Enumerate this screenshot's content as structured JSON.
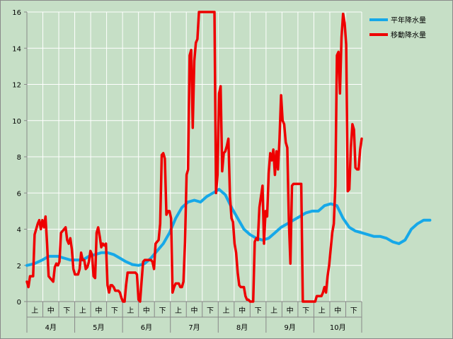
{
  "chart_data": {
    "type": "line",
    "title": "",
    "xlabel": "",
    "ylabel": "",
    "ylim": [
      0,
      16
    ],
    "yticks": [
      "0",
      "2",
      "4",
      "6",
      "8",
      "10",
      "12",
      "14",
      "16"
    ],
    "months": [
      "4月",
      "5月",
      "6月",
      "7月",
      "8月",
      "9月",
      "10月"
    ],
    "periods": [
      "上",
      "中",
      "下"
    ],
    "x_unit": "day index from start of April (0–213)",
    "grid": true,
    "legend_position": "top-right",
    "colors": {
      "background": "#c6dfc6",
      "normal": "#16a8e8",
      "moving": "#ee0000"
    },
    "series": [
      {
        "name": "平年降水量",
        "color": "#16a8e8",
        "points": [
          [
            0,
            2.0
          ],
          [
            5,
            2.1
          ],
          [
            10,
            2.3
          ],
          [
            14,
            2.5
          ],
          [
            20,
            2.5
          ],
          [
            24,
            2.4
          ],
          [
            28,
            2.3
          ],
          [
            32,
            2.3
          ],
          [
            36,
            2.3
          ],
          [
            40,
            2.5
          ],
          [
            44,
            2.6
          ],
          [
            48,
            2.7
          ],
          [
            52,
            2.7
          ],
          [
            56,
            2.6
          ],
          [
            60,
            2.4
          ],
          [
            64,
            2.2
          ],
          [
            68,
            2.05
          ],
          [
            72,
            2.0
          ],
          [
            76,
            2.1
          ],
          [
            80,
            2.4
          ],
          [
            84,
            2.8
          ],
          [
            88,
            3.2
          ],
          [
            92,
            3.8
          ],
          [
            96,
            4.6
          ],
          [
            100,
            5.2
          ],
          [
            104,
            5.5
          ],
          [
            108,
            5.6
          ],
          [
            112,
            5.5
          ],
          [
            116,
            5.8
          ],
          [
            120,
            6.0
          ],
          [
            124,
            6.2
          ],
          [
            128,
            5.9
          ],
          [
            132,
            5.2
          ],
          [
            136,
            4.6
          ],
          [
            140,
            4.0
          ],
          [
            144,
            3.7
          ],
          [
            148,
            3.5
          ],
          [
            152,
            3.4
          ],
          [
            156,
            3.5
          ],
          [
            160,
            3.8
          ],
          [
            164,
            4.1
          ],
          [
            168,
            4.3
          ],
          [
            172,
            4.5
          ],
          [
            176,
            4.7
          ],
          [
            180,
            4.9
          ],
          [
            184,
            5.0
          ],
          [
            188,
            5.0
          ],
          [
            192,
            5.3
          ],
          [
            196,
            5.4
          ],
          [
            200,
            5.3
          ],
          [
            204,
            4.6
          ],
          [
            208,
            4.1
          ],
          [
            212,
            3.9
          ],
          [
            216,
            3.8
          ],
          [
            220,
            3.7
          ],
          [
            224,
            3.6
          ],
          [
            228,
            3.6
          ],
          [
            232,
            3.5
          ],
          [
            236,
            3.3
          ],
          [
            240,
            3.2
          ],
          [
            244,
            3.4
          ],
          [
            248,
            4.0
          ],
          [
            252,
            4.3
          ],
          [
            256,
            4.5
          ],
          [
            260,
            4.5
          ]
        ]
      },
      {
        "name": "移動降水量",
        "color": "#ee0000",
        "points": [
          [
            0,
            1.1
          ],
          [
            1,
            0.8
          ],
          [
            2,
            1.4
          ],
          [
            4,
            1.4
          ],
          [
            5,
            3.7
          ],
          [
            7,
            4.3
          ],
          [
            8,
            4.5
          ],
          [
            9,
            4.0
          ],
          [
            10,
            4.5
          ],
          [
            11,
            4.1
          ],
          [
            12,
            4.7
          ],
          [
            13,
            3.2
          ],
          [
            14,
            1.4
          ],
          [
            15,
            1.3
          ],
          [
            16,
            1.2
          ],
          [
            17,
            1.1
          ],
          [
            18,
            1.9
          ],
          [
            19,
            2.1
          ],
          [
            20,
            2.0
          ],
          [
            21,
            2.2
          ],
          [
            22,
            3.8
          ],
          [
            23,
            3.9
          ],
          [
            24,
            4.0
          ],
          [
            25,
            4.1
          ],
          [
            26,
            3.4
          ],
          [
            27,
            3.2
          ],
          [
            28,
            3.5
          ],
          [
            29,
            2.9
          ],
          [
            30,
            1.8
          ],
          [
            31,
            1.5
          ],
          [
            32,
            1.5
          ],
          [
            33,
            1.5
          ],
          [
            34,
            1.8
          ],
          [
            35,
            2.7
          ],
          [
            36,
            2.3
          ],
          [
            37,
            2.3
          ],
          [
            38,
            1.8
          ],
          [
            39,
            1.9
          ],
          [
            40,
            2.2
          ],
          [
            41,
            2.8
          ],
          [
            42,
            2.6
          ],
          [
            43,
            1.4
          ],
          [
            44,
            1.3
          ],
          [
            45,
            3.8
          ],
          [
            46,
            4.1
          ],
          [
            47,
            3.6
          ],
          [
            48,
            3.0
          ],
          [
            49,
            3.2
          ],
          [
            50,
            3.1
          ],
          [
            51,
            3.2
          ],
          [
            52,
            0.9
          ],
          [
            53,
            0.5
          ],
          [
            54,
            0.9
          ],
          [
            55,
            0.9
          ],
          [
            56,
            0.8
          ],
          [
            57,
            0.6
          ],
          [
            58,
            0.6
          ],
          [
            59,
            0.6
          ],
          [
            60,
            0.5
          ],
          [
            61,
            0.2
          ],
          [
            62,
            0.0
          ],
          [
            63,
            0.0
          ],
          [
            64,
            0.9
          ],
          [
            65,
            1.6
          ],
          [
            67,
            1.6
          ],
          [
            69,
            1.6
          ],
          [
            70,
            1.6
          ],
          [
            71,
            1.5
          ],
          [
            72,
            0.1
          ],
          [
            73,
            0.0
          ],
          [
            74,
            1.1
          ],
          [
            75,
            2.2
          ],
          [
            76,
            2.3
          ],
          [
            78,
            2.3
          ],
          [
            80,
            2.3
          ],
          [
            81,
            2.2
          ],
          [
            82,
            1.8
          ],
          [
            83,
            3.2
          ],
          [
            84,
            3.3
          ],
          [
            85,
            3.4
          ],
          [
            86,
            4.3
          ],
          [
            87,
            8.1
          ],
          [
            88,
            8.2
          ],
          [
            89,
            7.9
          ],
          [
            90,
            4.8
          ],
          [
            91,
            5.0
          ],
          [
            92,
            5.0
          ],
          [
            93,
            4.6
          ],
          [
            94,
            0.5
          ],
          [
            95,
            0.8
          ],
          [
            96,
            1.0
          ],
          [
            97,
            1.0
          ],
          [
            98,
            1.0
          ],
          [
            99,
            0.8
          ],
          [
            100,
            0.8
          ],
          [
            101,
            1.1
          ],
          [
            102,
            3.3
          ],
          [
            103,
            7.0
          ],
          [
            104,
            7.3
          ],
          [
            105,
            13.6
          ],
          [
            106,
            13.9
          ],
          [
            107,
            9.6
          ],
          [
            108,
            13.3
          ],
          [
            109,
            14.3
          ],
          [
            110,
            14.5
          ],
          [
            111,
            16.0
          ],
          [
            112,
            16.0
          ],
          [
            120,
            16.0
          ],
          [
            121,
            16.0
          ],
          [
            122,
            6.0
          ],
          [
            123,
            7.0
          ],
          [
            124,
            11.5
          ],
          [
            125,
            11.9
          ],
          [
            126,
            7.2
          ],
          [
            127,
            8.2
          ],
          [
            128,
            8.3
          ],
          [
            129,
            8.6
          ],
          [
            130,
            9.0
          ],
          [
            131,
            5.8
          ],
          [
            132,
            4.6
          ],
          [
            133,
            4.4
          ],
          [
            134,
            3.2
          ],
          [
            135,
            2.7
          ],
          [
            136,
            1.6
          ],
          [
            137,
            0.9
          ],
          [
            138,
            0.8
          ],
          [
            139,
            0.8
          ],
          [
            140,
            0.8
          ],
          [
            141,
            0.3
          ],
          [
            142,
            0.1
          ],
          [
            143,
            0.1
          ],
          [
            144,
            0.0
          ],
          [
            145,
            0.0
          ],
          [
            146,
            0.0
          ],
          [
            147,
            3.3
          ],
          [
            148,
            3.5
          ],
          [
            149,
            3.4
          ],
          [
            150,
            5.2
          ],
          [
            151,
            5.8
          ],
          [
            152,
            6.4
          ],
          [
            153,
            3.2
          ],
          [
            154,
            5.0
          ],
          [
            155,
            4.7
          ],
          [
            156,
            7.1
          ],
          [
            157,
            8.2
          ],
          [
            158,
            7.8
          ],
          [
            159,
            8.4
          ],
          [
            160,
            7.0
          ],
          [
            161,
            8.3
          ],
          [
            162,
            7.3
          ],
          [
            163,
            9.0
          ],
          [
            164,
            11.4
          ],
          [
            165,
            10.0
          ],
          [
            166,
            9.8
          ],
          [
            167,
            8.8
          ],
          [
            168,
            8.5
          ],
          [
            169,
            4.5
          ],
          [
            170,
            2.1
          ],
          [
            171,
            6.4
          ],
          [
            172,
            6.5
          ],
          [
            174,
            6.5
          ],
          [
            176,
            6.5
          ],
          [
            177,
            6.5
          ],
          [
            178,
            0.0
          ],
          [
            180,
            0.0
          ],
          [
            185,
            0.0
          ],
          [
            186,
            0.0
          ],
          [
            187,
            0.3
          ],
          [
            190,
            0.3
          ],
          [
            191,
            0.5
          ],
          [
            192,
            0.8
          ],
          [
            193,
            0.5
          ],
          [
            194,
            1.4
          ],
          [
            195,
            2.0
          ],
          [
            196,
            2.9
          ],
          [
            197,
            3.8
          ],
          [
            198,
            4.3
          ],
          [
            199,
            6.4
          ],
          [
            200,
            13.6
          ],
          [
            201,
            13.8
          ],
          [
            202,
            11.5
          ],
          [
            203,
            14.6
          ],
          [
            204,
            15.9
          ],
          [
            205,
            15.4
          ],
          [
            206,
            14.2
          ],
          [
            207,
            6.1
          ],
          [
            208,
            6.2
          ],
          [
            209,
            8.5
          ],
          [
            210,
            9.8
          ],
          [
            211,
            9.5
          ],
          [
            212,
            7.4
          ],
          [
            213,
            7.3
          ],
          [
            214,
            7.3
          ],
          [
            215,
            8.4
          ],
          [
            216,
            9.0
          ]
        ]
      }
    ]
  }
}
